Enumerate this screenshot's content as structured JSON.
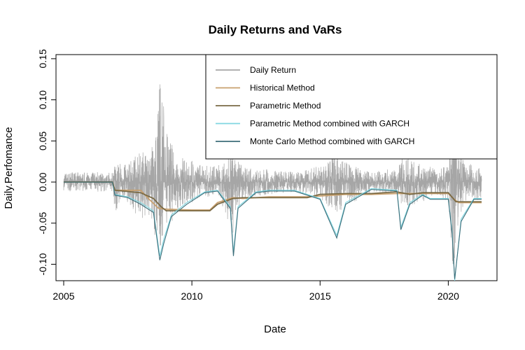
{
  "chart_data": {
    "type": "line",
    "title": "Daily Returns and VaRs",
    "xlabel": "Date",
    "ylabel": "Daily.Perfomance",
    "xlim": [
      2004.7,
      2021.9
    ],
    "ylim": [
      -0.12,
      0.155
    ],
    "x_ticks": [
      2005,
      2010,
      2015,
      2020
    ],
    "x_tick_labels": [
      "2005",
      "2010",
      "2015",
      "2020"
    ],
    "y_ticks": [
      -0.1,
      -0.05,
      0.0,
      0.05,
      0.1,
      0.15
    ],
    "y_tick_labels": [
      "-0.10",
      "-0.05",
      "0.00",
      "0.05",
      "0.10",
      "0.15"
    ],
    "grid": false,
    "legend_position": "top-right",
    "series": [
      {
        "name": "Daily Return",
        "color": "#a6a6a6",
        "x": [
          2005.0,
          2006.9,
          2007.0,
          2007.3,
          2007.6,
          2008.0,
          2008.3,
          2008.6,
          2008.75,
          2008.85,
          2008.95,
          2009.2,
          2009.5,
          2010.0,
          2010.4,
          2011.0,
          2011.6,
          2011.7,
          2012.0,
          2013.0,
          2014.0,
          2015.0,
          2015.6,
          2016.0,
          2017.0,
          2018.0,
          2018.2,
          2019.0,
          2019.5,
          2020.0,
          2020.15,
          2020.25,
          2020.35,
          2020.6,
          2021.3
        ],
        "low": [
          -0.012,
          -0.012,
          -0.038,
          -0.02,
          -0.03,
          -0.05,
          -0.04,
          -0.08,
          -0.098,
          -0.085,
          -0.07,
          -0.05,
          -0.03,
          -0.025,
          -0.02,
          -0.015,
          -0.065,
          -0.04,
          -0.02,
          -0.015,
          -0.012,
          -0.02,
          -0.04,
          -0.03,
          -0.012,
          -0.015,
          -0.03,
          -0.025,
          -0.015,
          -0.025,
          -0.1,
          -0.11,
          -0.06,
          -0.03,
          -0.02
        ],
        "high": [
          0.012,
          0.012,
          0.03,
          0.02,
          0.025,
          0.04,
          0.03,
          0.06,
          0.145,
          0.12,
          0.07,
          0.05,
          0.03,
          0.028,
          0.02,
          0.02,
          0.04,
          0.03,
          0.018,
          0.015,
          0.012,
          0.02,
          0.035,
          0.025,
          0.012,
          0.018,
          0.03,
          0.025,
          0.015,
          0.02,
          0.09,
          0.08,
          0.05,
          0.025,
          0.018
        ]
      },
      {
        "name": "Historical Method",
        "color": "#c8a06e",
        "x": [
          2005.0,
          2006.9,
          2007.0,
          2008.0,
          2008.3,
          2008.7,
          2009.0,
          2010.0,
          2010.7,
          2011.0,
          2011.6,
          2012.0,
          2013.0,
          2014.5,
          2015.0,
          2016.0,
          2017.0,
          2018.0,
          2019.0,
          2020.0,
          2020.2,
          2020.4,
          2021.3
        ],
        "y": [
          0.0,
          0.0,
          -0.01,
          -0.01,
          -0.02,
          -0.032,
          -0.033,
          -0.034,
          -0.034,
          -0.025,
          -0.019,
          -0.02,
          -0.018,
          -0.018,
          -0.017,
          -0.015,
          -0.015,
          -0.014,
          -0.014,
          -0.014,
          -0.02,
          -0.025,
          -0.025
        ]
      },
      {
        "name": "Parametric Method",
        "color": "#7a6a45",
        "x": [
          2005.0,
          2006.9,
          2007.0,
          2008.0,
          2008.5,
          2008.8,
          2009.0,
          2010.0,
          2010.7,
          2011.0,
          2011.6,
          2012.0,
          2013.0,
          2014.5,
          2015.0,
          2016.0,
          2017.0,
          2018.0,
          2018.5,
          2019.0,
          2020.0,
          2020.3,
          2021.3
        ],
        "y": [
          0.0,
          0.0,
          -0.01,
          -0.013,
          -0.02,
          -0.03,
          -0.035,
          -0.035,
          -0.035,
          -0.027,
          -0.02,
          -0.019,
          -0.019,
          -0.019,
          -0.015,
          -0.014,
          -0.014,
          -0.012,
          -0.015,
          -0.013,
          -0.013,
          -0.024,
          -0.024
        ]
      },
      {
        "name": "Parametric Method combined with GARCH",
        "color": "#7fd6e0",
        "x": [
          2005.0,
          2006.9,
          2007.0,
          2007.5,
          2008.0,
          2008.5,
          2008.75,
          2008.9,
          2009.2,
          2009.8,
          2010.5,
          2011.0,
          2011.5,
          2011.62,
          2011.8,
          2012.5,
          2013.0,
          2014.0,
          2015.0,
          2015.65,
          2016.0,
          2017.0,
          2018.0,
          2018.15,
          2018.5,
          2019.0,
          2019.3,
          2020.0,
          2020.15,
          2020.25,
          2020.5,
          2021.0,
          2021.3
        ],
        "y": [
          0.0,
          0.0,
          -0.015,
          -0.018,
          -0.025,
          -0.035,
          -0.09,
          -0.07,
          -0.04,
          -0.025,
          -0.012,
          -0.01,
          -0.03,
          -0.085,
          -0.03,
          -0.012,
          -0.01,
          -0.01,
          -0.02,
          -0.065,
          -0.025,
          -0.008,
          -0.01,
          -0.055,
          -0.025,
          -0.015,
          -0.02,
          -0.02,
          -0.06,
          -0.12,
          -0.045,
          -0.02,
          -0.02
        ]
      },
      {
        "name": "Monte Carlo Method combined with GARCH",
        "color": "#3d6e7a",
        "x": [
          2005.0,
          2006.9,
          2007.0,
          2007.5,
          2008.0,
          2008.5,
          2008.75,
          2008.9,
          2009.2,
          2009.8,
          2010.5,
          2011.0,
          2011.5,
          2011.62,
          2011.8,
          2012.5,
          2013.0,
          2014.0,
          2015.0,
          2015.65,
          2016.0,
          2017.0,
          2018.0,
          2018.15,
          2018.5,
          2019.0,
          2019.3,
          2020.0,
          2020.15,
          2020.25,
          2020.5,
          2021.0,
          2021.3
        ],
        "y": [
          0.0,
          0.0,
          -0.016,
          -0.019,
          -0.027,
          -0.037,
          -0.095,
          -0.075,
          -0.042,
          -0.027,
          -0.013,
          -0.011,
          -0.032,
          -0.09,
          -0.032,
          -0.013,
          -0.011,
          -0.011,
          -0.021,
          -0.068,
          -0.027,
          -0.009,
          -0.011,
          -0.058,
          -0.027,
          -0.016,
          -0.021,
          -0.021,
          -0.063,
          -0.118,
          -0.048,
          -0.021,
          -0.021
        ]
      }
    ]
  }
}
